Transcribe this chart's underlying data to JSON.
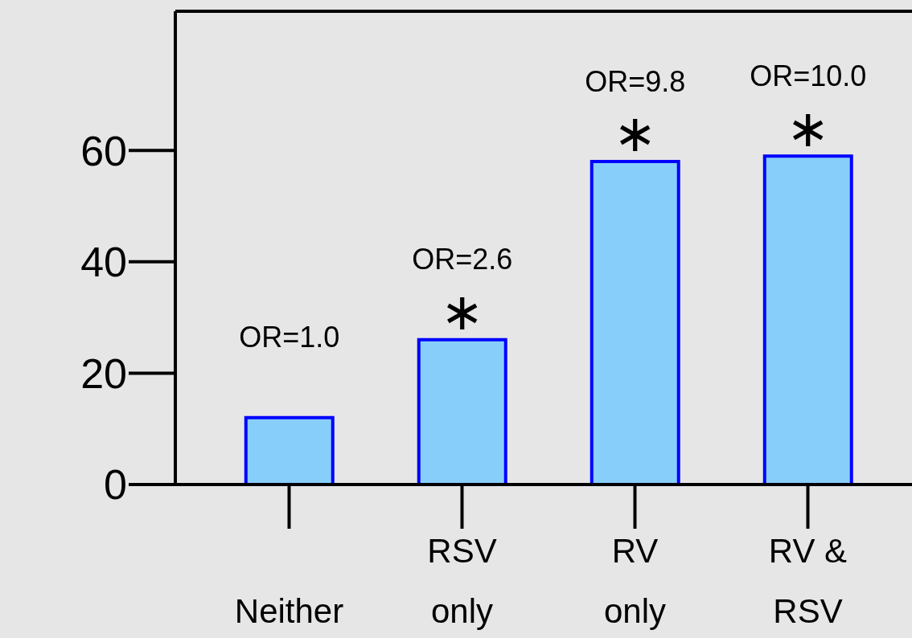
{
  "chart_data": {
    "type": "bar",
    "categories": [
      "Neither",
      "RSV\nonly",
      "RV\nonly",
      "RV &\nRSV"
    ],
    "values": [
      12,
      26,
      58,
      59
    ],
    "color": "#87cefa",
    "ylim": [
      0,
      85
    ],
    "yticks": [
      0,
      20,
      40,
      60
    ],
    "annotations": [
      {
        "text": "OR=1.0",
        "x": "Neither",
        "y": 12
      },
      {
        "text": "∗",
        "x": "RSV\nonly",
        "y": 26
      },
      {
        "text": "OR=2.6",
        "x": "RSV\nonly",
        "y": 26
      },
      {
        "text": "∗",
        "x": "RV\nonly",
        "y": 58
      },
      {
        "text": "OR=9.8",
        "x": "RV\nonly",
        "y": 58
      },
      {
        "text": "∗",
        "x": "RV &\nRSV",
        "y": 59
      },
      {
        "text": "OR=10.0",
        "x": "RV &\nRSV",
        "y": 59
      }
    ]
  }
}
